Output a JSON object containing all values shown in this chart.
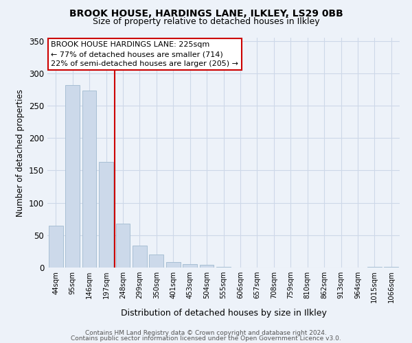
{
  "title": "BROOK HOUSE, HARDINGS LANE, ILKLEY, LS29 0BB",
  "subtitle": "Size of property relative to detached houses in Ilkley",
  "xlabel": "Distribution of detached houses by size in Ilkley",
  "ylabel": "Number of detached properties",
  "bar_labels": [
    "44sqm",
    "95sqm",
    "146sqm",
    "197sqm",
    "248sqm",
    "299sqm",
    "350sqm",
    "401sqm",
    "453sqm",
    "504sqm",
    "555sqm",
    "606sqm",
    "657sqm",
    "708sqm",
    "759sqm",
    "810sqm",
    "862sqm",
    "913sqm",
    "964sqm",
    "1015sqm",
    "1066sqm"
  ],
  "bar_values": [
    65,
    282,
    273,
    163,
    68,
    34,
    20,
    9,
    5,
    4,
    1,
    0,
    0,
    0,
    0,
    0,
    0,
    0,
    0,
    1,
    1
  ],
  "bar_color": "#ccd9ea",
  "bar_edge_color": "#a8bfd4",
  "vline_color": "#cc0000",
  "ylim": [
    0,
    355
  ],
  "yticks": [
    0,
    50,
    100,
    150,
    200,
    250,
    300,
    350
  ],
  "annotation_title": "BROOK HOUSE HARDINGS LANE: 225sqm",
  "annotation_line1": "← 77% of detached houses are smaller (714)",
  "annotation_line2": "22% of semi-detached houses are larger (205) →",
  "annotation_box_color": "#ffffff",
  "annotation_box_edge": "#cc0000",
  "footer_line1": "Contains HM Land Registry data © Crown copyright and database right 2024.",
  "footer_line2": "Contains public sector information licensed under the Open Government Licence v3.0.",
  "grid_color": "#cdd8e8",
  "background_color": "#edf2f9"
}
